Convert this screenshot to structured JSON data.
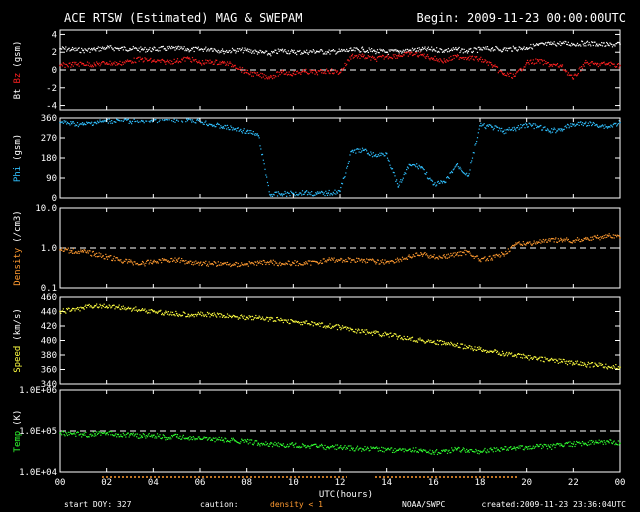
{
  "header": {
    "title": "ACE RTSW (Estimated) MAG & SWEPAM",
    "begin": "Begin: 2009-11-23 00:00:00UTC"
  },
  "footer": {
    "start_doy": "start DOY: 327",
    "caution": "caution:",
    "density_note": "density < 1",
    "source": "NOAA/SWPC",
    "created": "created:2009-11-23 23:36:04UTC"
  },
  "colors": {
    "bt": "#ffffff",
    "bz": "#ff2020",
    "phi": "#30c0ff",
    "density": "#ff9a30",
    "speed": "#ffff40",
    "temp": "#30ff30"
  },
  "chart_data": {
    "type": "scatter",
    "xlabel": "UTC(hours)",
    "x_ticks": [
      "00",
      "02",
      "04",
      "06",
      "08",
      "10",
      "12",
      "14",
      "16",
      "18",
      "20",
      "22",
      "00"
    ],
    "xlim": [
      0,
      24
    ],
    "panels": [
      {
        "id": "mag",
        "ylabel_parts": [
          "Bt",
          "Bz",
          "(gsm)"
        ],
        "ylim": [
          -4.5,
          4.5
        ],
        "ticks": [
          "4",
          "2",
          "0",
          "-2",
          "-4"
        ],
        "tick_values": [
          4,
          2,
          0,
          -2,
          -4
        ],
        "dashed_ref": 0,
        "series": [
          {
            "name": "Bt",
            "color_key": "bt",
            "x": [
              0,
              0.5,
              1,
              1.5,
              2,
              2.5,
              3,
              3.5,
              4,
              4.5,
              5,
              5.5,
              6,
              6.5,
              7,
              7.5,
              8,
              8.5,
              9,
              9.5,
              10,
              10.5,
              11,
              11.5,
              12,
              12.5,
              13,
              13.5,
              14,
              14.5,
              15,
              15.5,
              16,
              16.5,
              17,
              17.5,
              18,
              18.5,
              19,
              19.5,
              20,
              20.5,
              21,
              21.5,
              22,
              22.5,
              23,
              23.5,
              24
            ],
            "y": [
              2.4,
              2.3,
              2.2,
              2.3,
              2.5,
              2.4,
              2.4,
              2.3,
              2.3,
              2.4,
              2.4,
              2.3,
              2.3,
              2.4,
              2.1,
              2.2,
              2.2,
              2.0,
              1.8,
              2.2,
              2.0,
              2.0,
              2.1,
              2.0,
              2.1,
              2.2,
              2.3,
              2.1,
              2.0,
              2.1,
              2.2,
              2.3,
              2.3,
              2.2,
              2.3,
              2.1,
              2.3,
              2.4,
              2.3,
              2.4,
              2.5,
              2.8,
              2.9,
              3.0,
              2.9,
              3.0,
              2.9,
              2.8,
              2.9
            ]
          },
          {
            "name": "Bz",
            "color_key": "bz",
            "x": [
              0,
              0.5,
              1,
              1.5,
              2,
              2.5,
              3,
              3.5,
              4,
              4.5,
              5,
              5.5,
              6,
              6.5,
              7,
              7.5,
              8,
              8.5,
              9,
              9.5,
              10,
              10.5,
              11,
              11.5,
              12,
              12.5,
              13,
              13.5,
              14,
              14.5,
              15,
              15.5,
              16,
              16.5,
              17,
              17.5,
              18,
              18.5,
              19,
              19.5,
              20,
              20.5,
              21,
              21.5,
              22,
              22.5,
              23,
              23.5,
              24
            ],
            "y": [
              0.5,
              0.6,
              0.7,
              0.6,
              0.8,
              0.7,
              1.0,
              1.2,
              1.0,
              0.9,
              1.0,
              1.3,
              0.8,
              0.9,
              0.8,
              0.5,
              -0.3,
              -0.6,
              -0.8,
              -0.3,
              -0.4,
              -0.2,
              -0.3,
              -0.1,
              -0.3,
              1.6,
              1.5,
              1.2,
              1.5,
              1.6,
              1.8,
              1.7,
              1.3,
              1.0,
              1.5,
              1.4,
              1.2,
              0.6,
              -0.5,
              -0.7,
              0.8,
              1.0,
              0.6,
              0.4,
              -1.0,
              0.8,
              0.6,
              0.7,
              0.5
            ]
          }
        ]
      },
      {
        "id": "phi",
        "ylabel_parts": [
          "Phi",
          "(gsm)"
        ],
        "ylim": [
          0,
          360
        ],
        "ticks": [
          "360",
          "270",
          "180",
          "90",
          "0"
        ],
        "tick_values": [
          360,
          270,
          180,
          90,
          0
        ],
        "series": [
          {
            "name": "Phi",
            "color_key": "phi",
            "x": [
              0,
              0.5,
              1,
              1.5,
              2,
              2.5,
              3,
              3.5,
              4,
              4.5,
              5,
              5.5,
              6,
              6.5,
              7,
              7.5,
              8,
              8.5,
              9,
              9.5,
              10,
              10.5,
              11,
              11.5,
              12,
              12.5,
              13,
              13.5,
              14,
              14.5,
              15,
              15.5,
              16,
              16.5,
              17,
              17.5,
              18,
              18.5,
              19,
              19.5,
              20,
              20.5,
              21,
              21.5,
              22,
              22.5,
              23,
              23.5,
              24
            ],
            "y": [
              340,
              335,
              330,
              340,
              345,
              350,
              345,
              348,
              350,
              352,
              350,
              355,
              345,
              330,
              320,
              310,
              300,
              280,
              15,
              18,
              20,
              25,
              18,
              22,
              30,
              210,
              215,
              190,
              200,
              50,
              150,
              140,
              60,
              70,
              150,
              100,
              325,
              320,
              300,
              310,
              330,
              320,
              300,
              310,
              330,
              335,
              330,
              320,
              340
            ]
          }
        ]
      },
      {
        "id": "density",
        "ylabel_parts": [
          "Density",
          "(/cm3)"
        ],
        "ylim": [
          0.1,
          10
        ],
        "log": true,
        "ticks": [
          "10.0",
          "1.0",
          "0.1"
        ],
        "tick_values": [
          10,
          1,
          0.1
        ],
        "dashed_ref": 1,
        "series": [
          {
            "name": "Density",
            "color_key": "density",
            "x": [
              0,
              0.5,
              1,
              1.5,
              2,
              2.5,
              3,
              3.5,
              4,
              4.5,
              5,
              5.5,
              6,
              6.5,
              7,
              7.5,
              8,
              8.5,
              9,
              9.5,
              10,
              10.5,
              11,
              11.5,
              12,
              12.5,
              13,
              13.5,
              14,
              14.5,
              15,
              15.5,
              16,
              16.5,
              17,
              17.5,
              18,
              18.5,
              19,
              19.5,
              20,
              20.5,
              21,
              21.5,
              22,
              22.5,
              23,
              23.5,
              24
            ],
            "y": [
              0.9,
              0.85,
              0.8,
              0.7,
              0.6,
              0.5,
              0.45,
              0.4,
              0.45,
              0.5,
              0.5,
              0.45,
              0.42,
              0.4,
              0.4,
              0.38,
              0.4,
              0.42,
              0.45,
              0.4,
              0.42,
              0.4,
              0.45,
              0.5,
              0.5,
              0.5,
              0.5,
              0.45,
              0.45,
              0.5,
              0.6,
              0.7,
              0.6,
              0.6,
              0.7,
              0.8,
              0.5,
              0.55,
              0.7,
              1.2,
              1.3,
              1.4,
              1.5,
              1.6,
              1.5,
              1.7,
              1.8,
              2.0,
              1.8
            ]
          }
        ]
      },
      {
        "id": "speed",
        "ylabel_parts": [
          "Speed",
          "(km/s)"
        ],
        "ylim": [
          340,
          460
        ],
        "ticks": [
          "460",
          "440",
          "420",
          "400",
          "380",
          "360",
          "340"
        ],
        "tick_values": [
          460,
          440,
          420,
          400,
          380,
          360,
          340
        ],
        "series": [
          {
            "name": "Speed",
            "color_key": "speed",
            "x": [
              0,
              0.5,
              1,
              1.5,
              2,
              2.5,
              3,
              3.5,
              4,
              4.5,
              5,
              5.5,
              6,
              6.5,
              7,
              7.5,
              8,
              8.5,
              9,
              9.5,
              10,
              10.5,
              11,
              11.5,
              12,
              12.5,
              13,
              13.5,
              14,
              14.5,
              15,
              15.5,
              16,
              16.5,
              17,
              17.5,
              18,
              18.5,
              19,
              19.5,
              20,
              20.5,
              21,
              21.5,
              22,
              22.5,
              23,
              23.5,
              24
            ],
            "y": [
              440,
              442,
              445,
              448,
              447,
              446,
              444,
              442,
              440,
              438,
              437,
              436,
              436,
              435,
              434,
              433,
              432,
              431,
              429,
              428,
              426,
              424,
              422,
              420,
              418,
              415,
              412,
              410,
              408,
              405,
              403,
              400,
              398,
              396,
              393,
              390,
              388,
              385,
              382,
              380,
              377,
              375,
              373,
              371,
              369,
              367,
              366,
              364,
              363
            ]
          }
        ]
      },
      {
        "id": "temp",
        "ylabel_parts": [
          "Temp",
          "(K)"
        ],
        "ylim": [
          10000,
          1000000
        ],
        "log": true,
        "ticks": [
          "1.0E+06",
          "1.0E+05",
          "1.0E+04"
        ],
        "tick_values": [
          1000000,
          100000,
          10000
        ],
        "dashed_ref": 100000,
        "series": [
          {
            "name": "Temp",
            "color_key": "temp",
            "x": [
              0,
              0.5,
              1,
              1.5,
              2,
              2.5,
              3,
              3.5,
              4,
              4.5,
              5,
              5.5,
              6,
              6.5,
              7,
              7.5,
              8,
              8.5,
              9,
              9.5,
              10,
              10.5,
              11,
              11.5,
              12,
              12.5,
              13,
              13.5,
              14,
              14.5,
              15,
              15.5,
              16,
              16.5,
              17,
              17.5,
              18,
              18.5,
              19,
              19.5,
              20,
              20.5,
              21,
              21.5,
              22,
              22.5,
              23,
              23.5,
              24
            ],
            "y": [
              90000,
              85000,
              80000,
              85000,
              88000,
              82000,
              80000,
              75000,
              78000,
              70000,
              72000,
              68000,
              65000,
              62000,
              60000,
              58000,
              55000,
              50000,
              48000,
              45000,
              45000,
              44000,
              42000,
              40000,
              40000,
              38000,
              36000,
              38000,
              35000,
              34000,
              36000,
              33000,
              30000,
              32000,
              35000,
              33000,
              32000,
              35000,
              36000,
              38000,
              40000,
              42000,
              40000,
              45000,
              48000,
              50000,
              52000,
              55000,
              50000
            ]
          }
        ]
      }
    ]
  }
}
